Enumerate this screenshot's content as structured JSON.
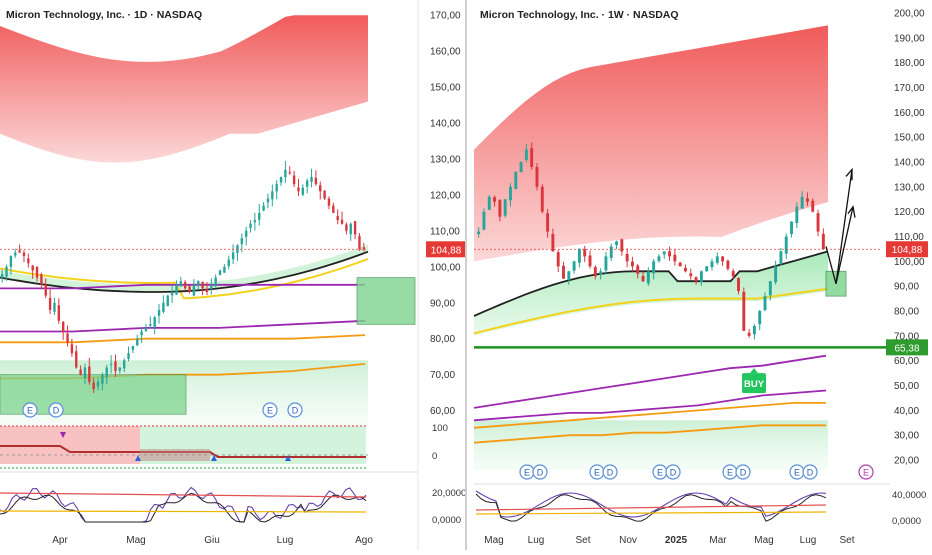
{
  "colors": {
    "up": "#26a69a",
    "down": "#d9363e",
    "red_band": "#ef5350",
    "green_band": "#8fe0a3",
    "purple": "#9c27b0",
    "orange": "#f39c12",
    "yellow": "#f2d21b",
    "black_ma": "#222222",
    "support": "#1f8f1f",
    "box": "#7fd48f",
    "price_tag": "#e53935",
    "support_tag": "#2e9b2e"
  },
  "chart_data": [
    {
      "type": "candlestick",
      "panel": "left",
      "title": "Micron Technology, Inc. · 1D · NASDAQ",
      "y_ticks": [
        "170,00",
        "160,00",
        "150,00",
        "140,00",
        "130,00",
        "120,00",
        "110,00",
        "100,00",
        "90,00",
        "80,00",
        "70,00",
        "60,00"
      ],
      "ylim": [
        56,
        172
      ],
      "x_ticks": [
        "Apr",
        "Mag",
        "Giu",
        "Lug",
        "Ago"
      ],
      "last_price_label": "104,88",
      "last_price": 104.88,
      "osc_ticks": [
        "100",
        "0"
      ],
      "sub_ticks": [
        "20,0000",
        "0,0000"
      ],
      "markers": [
        "E",
        "D",
        "E",
        "D"
      ],
      "closes": [
        98,
        100,
        103,
        104,
        104,
        103,
        101,
        99,
        97,
        95,
        92,
        88,
        90,
        85,
        82,
        79,
        76,
        72,
        70,
        72,
        68,
        66,
        68,
        70,
        72,
        73,
        71,
        72,
        74,
        76,
        78,
        80,
        82,
        83,
        84,
        86,
        88,
        90,
        92,
        93,
        95,
        96,
        94,
        93,
        95,
        96,
        94,
        93,
        95,
        97,
        99,
        100,
        102,
        104,
        106,
        108,
        110,
        112,
        113,
        115,
        117,
        119,
        121,
        123,
        125,
        127,
        126,
        123,
        121,
        122,
        124,
        125,
        123,
        121,
        119,
        117,
        115,
        113,
        112,
        110,
        112,
        109,
        105,
        104.88
      ],
      "series": [
        {
          "name": "",
          "values": [
            null
          ]
        }
      ]
    },
    {
      "type": "candlestick",
      "panel": "right",
      "title": "Micron Technology, Inc. · 1W · NASDAQ",
      "y_ticks": [
        "200,00",
        "190,00",
        "180,00",
        "170,00",
        "160,00",
        "150,00",
        "140,00",
        "130,00",
        "120,00",
        "110,00",
        "100,00",
        "90,00",
        "80,00",
        "70,00",
        "60,00",
        "50,00",
        "40,00",
        "30,00",
        "20,00"
      ],
      "ylim": [
        16,
        202
      ],
      "x_ticks": [
        "Mag",
        "Lug",
        "Set",
        "Nov",
        "2025",
        "Mar",
        "Mag",
        "Lug",
        "Set"
      ],
      "last_price_label": "104,88",
      "last_price": 104.88,
      "support_label": "65,38",
      "support": 65.38,
      "buy_label": "BUY",
      "sub_ticks": [
        "40,0000",
        "0,0000"
      ],
      "markers": [
        "E",
        "D",
        "E",
        "D",
        "E",
        "D",
        "E",
        "D",
        "E",
        "D",
        "E"
      ],
      "closes": [
        112,
        120,
        126,
        124,
        118,
        125,
        130,
        136,
        140,
        145,
        138,
        130,
        120,
        112,
        104,
        98,
        93,
        96,
        100,
        105,
        102,
        98,
        94,
        96,
        102,
        106,
        108,
        104,
        100,
        98,
        95,
        92,
        96,
        100,
        102,
        104,
        102,
        100,
        98,
        96,
        94,
        92,
        96,
        98,
        100,
        102,
        100,
        97,
        94,
        88,
        72,
        70,
        74,
        80,
        86,
        92,
        98,
        104,
        110,
        116,
        122,
        126,
        124,
        120,
        112,
        104.88
      ]
    }
  ]
}
